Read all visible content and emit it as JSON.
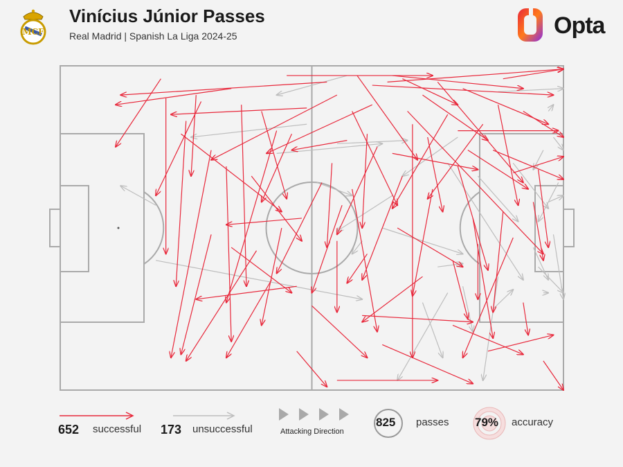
{
  "header": {
    "title": "Vinícius Júnior Passes",
    "subtitle": "Real Madrid | Spanish La Liga 2024-25",
    "brand": "Opta"
  },
  "colors": {
    "successful": "#e8273a",
    "unsuccessful": "#bdbdbd",
    "pitch_lines": "#a9a9a9",
    "background": "#f3f3f3"
  },
  "legend": {
    "successful_count": "652",
    "successful_label": "successful",
    "unsuccessful_count": "173",
    "unsuccessful_label": "unsuccessful",
    "direction_label": "Attacking Direction",
    "passes_total": "825",
    "passes_label": "passes",
    "accuracy_value": "79%",
    "accuracy_label": "accuracy"
  },
  "chart_data": {
    "type": "scatter",
    "title": "Vinícius Júnior Passes",
    "subtitle": "Real Madrid | Spanish La Liga 2024-25",
    "pitch": {
      "length": 100,
      "width": 100,
      "attacking_direction": "left-to-right"
    },
    "totals": {
      "successful": 652,
      "unsuccessful": 173,
      "passes": 825,
      "accuracy_pct": 79
    },
    "series": [
      {
        "name": "successful",
        "representative_passes": [
          [
            45,
            97,
            74,
            97
          ],
          [
            59,
            97,
            71,
            71
          ],
          [
            68,
            96,
            79,
            88
          ],
          [
            72,
            91,
            85,
            77
          ],
          [
            65,
            95,
            100,
            99
          ],
          [
            80,
            93,
            97,
            82
          ],
          [
            88,
            96,
            100,
            99
          ],
          [
            53,
            95,
            12,
            91
          ],
          [
            62,
            88,
            41,
            73
          ],
          [
            77,
            85,
            66,
            56
          ],
          [
            84,
            82,
            73,
            59
          ],
          [
            70,
            82,
            70,
            10
          ],
          [
            49,
            87,
            22,
            85
          ],
          [
            55,
            91,
            30,
            71
          ],
          [
            34,
            93,
            11,
            88
          ],
          [
            61,
            79,
            60,
            50
          ],
          [
            73,
            78,
            76,
            55
          ],
          [
            75,
            95,
            92,
            64
          ],
          [
            87,
            88,
            91,
            57
          ],
          [
            92,
            86,
            100,
            78
          ],
          [
            57,
            77,
            46,
            74
          ],
          [
            66,
            73,
            83,
            68
          ],
          [
            81,
            74,
            93,
            62
          ],
          [
            46,
            79,
            40,
            58
          ],
          [
            68,
            66,
            60,
            34
          ],
          [
            74,
            62,
            70,
            29
          ],
          [
            79,
            69,
            85,
            37
          ],
          [
            54,
            70,
            53,
            44
          ],
          [
            63,
            75,
            55,
            48
          ],
          [
            95,
            68,
            97,
            44
          ],
          [
            94,
            58,
            96,
            40
          ],
          [
            88,
            55,
            86,
            24
          ],
          [
            83,
            45,
            83,
            28
          ],
          [
            78,
            40,
            81,
            22
          ],
          [
            72,
            35,
            60,
            21
          ],
          [
            61,
            42,
            57,
            33
          ],
          [
            56,
            57,
            50,
            30
          ],
          [
            52,
            64,
            43,
            36
          ],
          [
            48,
            53,
            33,
            51
          ],
          [
            44,
            50,
            40,
            20
          ],
          [
            39,
            43,
            25,
            9
          ],
          [
            33,
            69,
            34,
            15
          ],
          [
            30,
            74,
            22,
            10
          ],
          [
            42,
            34,
            33,
            10
          ],
          [
            28,
            89,
            19,
            60
          ],
          [
            25,
            83,
            23,
            32
          ],
          [
            21,
            90,
            21,
            42
          ],
          [
            43,
            80,
            33,
            27
          ],
          [
            36,
            88,
            37,
            32
          ],
          [
            20,
            96,
            11,
            75
          ],
          [
            60,
            23,
            82,
            21
          ],
          [
            64,
            14,
            82,
            2
          ],
          [
            55,
            3,
            75,
            3
          ],
          [
            78,
            20,
            92,
            11
          ],
          [
            85,
            12,
            98,
            17
          ],
          [
            92,
            27,
            93,
            17
          ],
          [
            96,
            9,
            100,
            0
          ],
          [
            47,
            12,
            53,
            1
          ],
          [
            50,
            26,
            61,
            10
          ],
          [
            67,
            50,
            80,
            38
          ],
          [
            58,
            62,
            63,
            18
          ],
          [
            69,
            86,
            96,
            42
          ],
          [
            86,
            74,
            100,
            65
          ],
          [
            90,
            67,
            100,
            72
          ],
          [
            40,
            86,
            45,
            59
          ],
          [
            62,
            94,
            98,
            91
          ],
          [
            27,
            91,
            26,
            66
          ],
          [
            24,
            79,
            44,
            55
          ],
          [
            55,
            46,
            55,
            24
          ],
          [
            30,
            48,
            24,
            11
          ],
          [
            82,
            53,
            86,
            16
          ],
          [
            90,
            47,
            80,
            10
          ],
          [
            47,
            32,
            27,
            28
          ],
          [
            34,
            44,
            46,
            30
          ],
          [
            38,
            66,
            48,
            46
          ],
          [
            66,
            97,
            92,
            93
          ],
          [
            79,
            80,
            99,
            80
          ],
          [
            58,
            86,
            67,
            57
          ]
        ]
      },
      {
        "name": "unsuccessful",
        "representative_passes": [
          [
            57,
            97,
            43,
            91
          ],
          [
            87,
            92,
            100,
            93
          ],
          [
            97,
            86,
            98,
            88
          ],
          [
            98,
            78,
            100,
            74
          ],
          [
            96,
            74,
            94,
            68
          ],
          [
            99,
            64,
            95,
            52
          ],
          [
            97,
            58,
            100,
            60
          ],
          [
            98,
            48,
            100,
            28
          ],
          [
            94,
            44,
            97,
            34
          ],
          [
            95,
            38,
            100,
            30
          ],
          [
            96,
            30,
            97,
            30
          ],
          [
            77,
            70,
            92,
            34
          ],
          [
            83,
            66,
            91,
            52
          ],
          [
            90,
            70,
            97,
            56
          ],
          [
            87,
            35,
            84,
            3
          ],
          [
            77,
            30,
            67,
            3
          ],
          [
            72,
            27,
            76,
            10
          ],
          [
            80,
            32,
            82,
            18
          ],
          [
            60,
            46,
            58,
            42
          ],
          [
            64,
            50,
            80,
            42
          ],
          [
            49,
            82,
            26,
            78
          ],
          [
            55,
            76,
            69,
            77
          ],
          [
            51,
            64,
            58,
            60
          ],
          [
            43,
            73,
            64,
            76
          ],
          [
            19,
            57,
            12,
            63
          ],
          [
            19,
            40,
            60,
            28
          ],
          [
            75,
            38,
            80,
            39
          ],
          [
            86,
            25,
            90,
            31
          ],
          [
            79,
            78,
            68,
            66
          ],
          [
            66,
            60,
            55,
            49
          ]
        ]
      }
    ]
  }
}
